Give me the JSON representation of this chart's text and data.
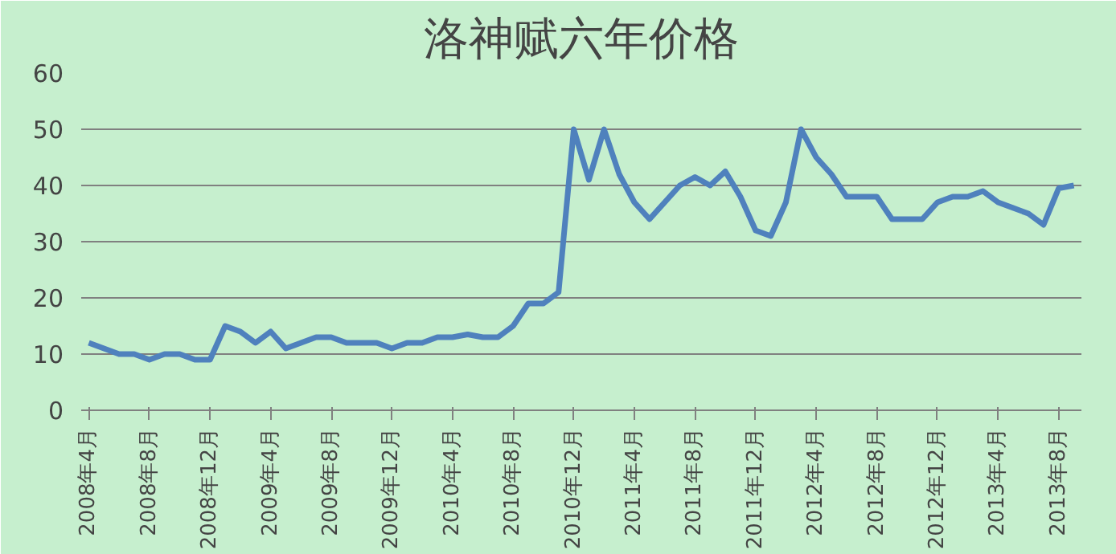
{
  "chart_data": {
    "type": "line",
    "title": "洛神赋六年价格",
    "categories": [
      "2008年4月",
      null,
      null,
      null,
      "2008年8月",
      null,
      null,
      null,
      "2008年12月",
      null,
      null,
      null,
      "2009年4月",
      null,
      null,
      null,
      "2009年8月",
      null,
      null,
      null,
      "2009年12月",
      null,
      null,
      null,
      "2010年4月",
      null,
      null,
      null,
      "2010年8月",
      null,
      null,
      null,
      "2010年12月",
      null,
      null,
      null,
      "2011年4月",
      null,
      null,
      null,
      "2011年8月",
      null,
      null,
      null,
      "2011年12月",
      null,
      null,
      null,
      "2012年4月",
      null,
      null,
      null,
      "2012年8月",
      null,
      null,
      null,
      "2012年12月",
      null,
      null,
      null,
      "2013年4月",
      null,
      null,
      null,
      "2013年8月",
      null
    ],
    "series": [
      {
        "color": "#4f81bd",
        "values": [
          12,
          11,
          10,
          10,
          9,
          10,
          10,
          9,
          9,
          15,
          14,
          12,
          14,
          11,
          12,
          13,
          13,
          12,
          12,
          12,
          11,
          12,
          12,
          13,
          13,
          13.5,
          13,
          13,
          15,
          19,
          19,
          21,
          50,
          41,
          50,
          42,
          37,
          34,
          37,
          40,
          41.5,
          40,
          42.5,
          38,
          32,
          31,
          37,
          50,
          45,
          42,
          38,
          38,
          38,
          34,
          34,
          34,
          37,
          38,
          38,
          39,
          37,
          36,
          35,
          33,
          39.5,
          40
        ]
      }
    ],
    "ylim": [
      0,
      60
    ],
    "yticks": [
      0,
      10,
      20,
      30,
      40,
      50,
      60
    ],
    "grid": "y",
    "marker": "none",
    "line_style": "solid"
  }
}
